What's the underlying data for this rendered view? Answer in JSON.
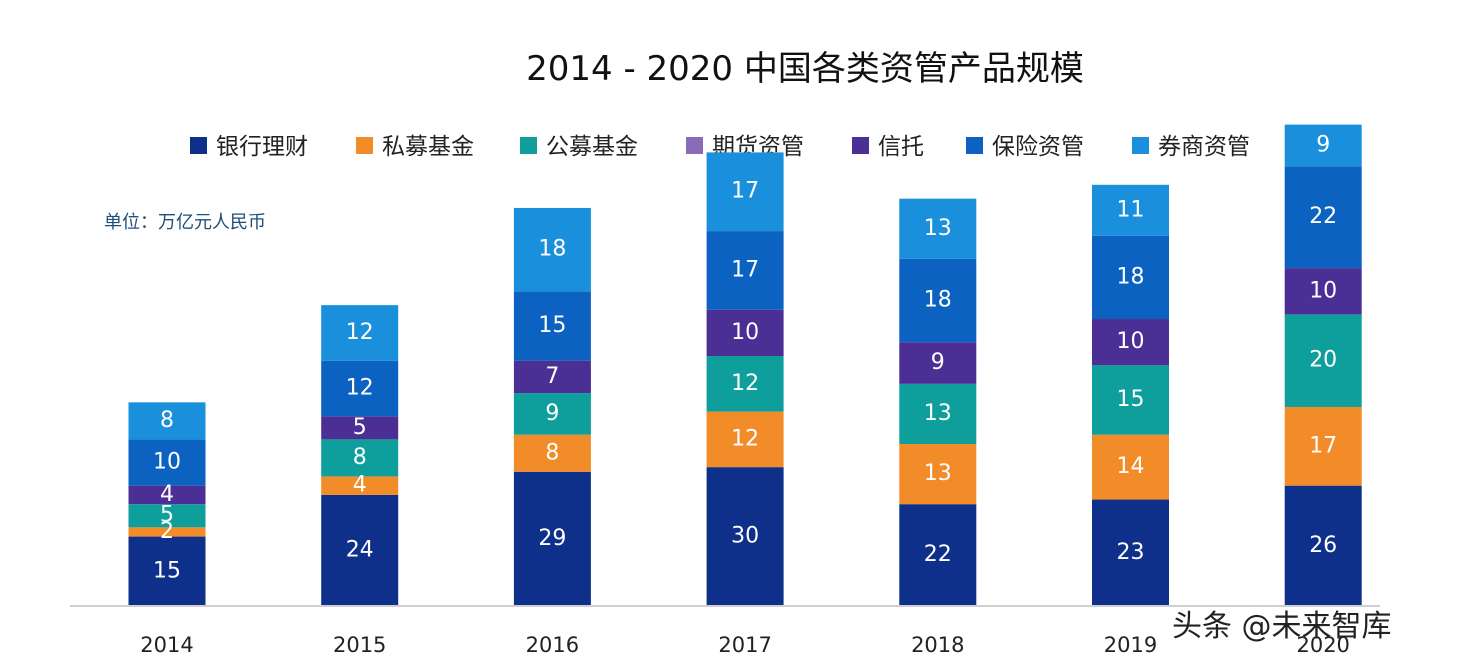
{
  "chart_data": {
    "type": "bar",
    "stacked": true,
    "title": "2014 - 2020 中国各类资管产品规模",
    "unit_label": "单位：万亿元人民币",
    "categories": [
      "2014",
      "2015",
      "2016",
      "2017",
      "2018",
      "2019",
      "2020"
    ],
    "series": [
      {
        "name": "银行理财",
        "color": "#0e2f8a",
        "values": [
          15,
          24,
          29,
          30,
          22,
          23,
          26
        ]
      },
      {
        "name": "私募基金",
        "color": "#f28c28",
        "values": [
          2,
          4,
          8,
          12,
          13,
          14,
          17
        ]
      },
      {
        "name": "公募基金",
        "color": "#0e9e9c",
        "values": [
          5,
          8,
          9,
          12,
          13,
          15,
          20
        ]
      },
      {
        "name": "期货资管",
        "color": "#8a6bb8",
        "values": [
          0,
          0,
          0,
          0,
          0,
          0,
          0
        ]
      },
      {
        "name": "信托",
        "color": "#4b2f94",
        "values": [
          4,
          5,
          7,
          10,
          9,
          10,
          10
        ]
      },
      {
        "name": "保险资管",
        "color": "#0c62c0",
        "values": [
          10,
          12,
          15,
          17,
          18,
          18,
          22
        ]
      },
      {
        "name": "券商资管",
        "color": "#1a8fdb",
        "values": [
          8,
          12,
          18,
          17,
          13,
          11,
          9
        ]
      }
    ],
    "legend": "top",
    "ylim": [
      0,
      105
    ],
    "grid": false
  },
  "watermark": "头条 @未来智库"
}
